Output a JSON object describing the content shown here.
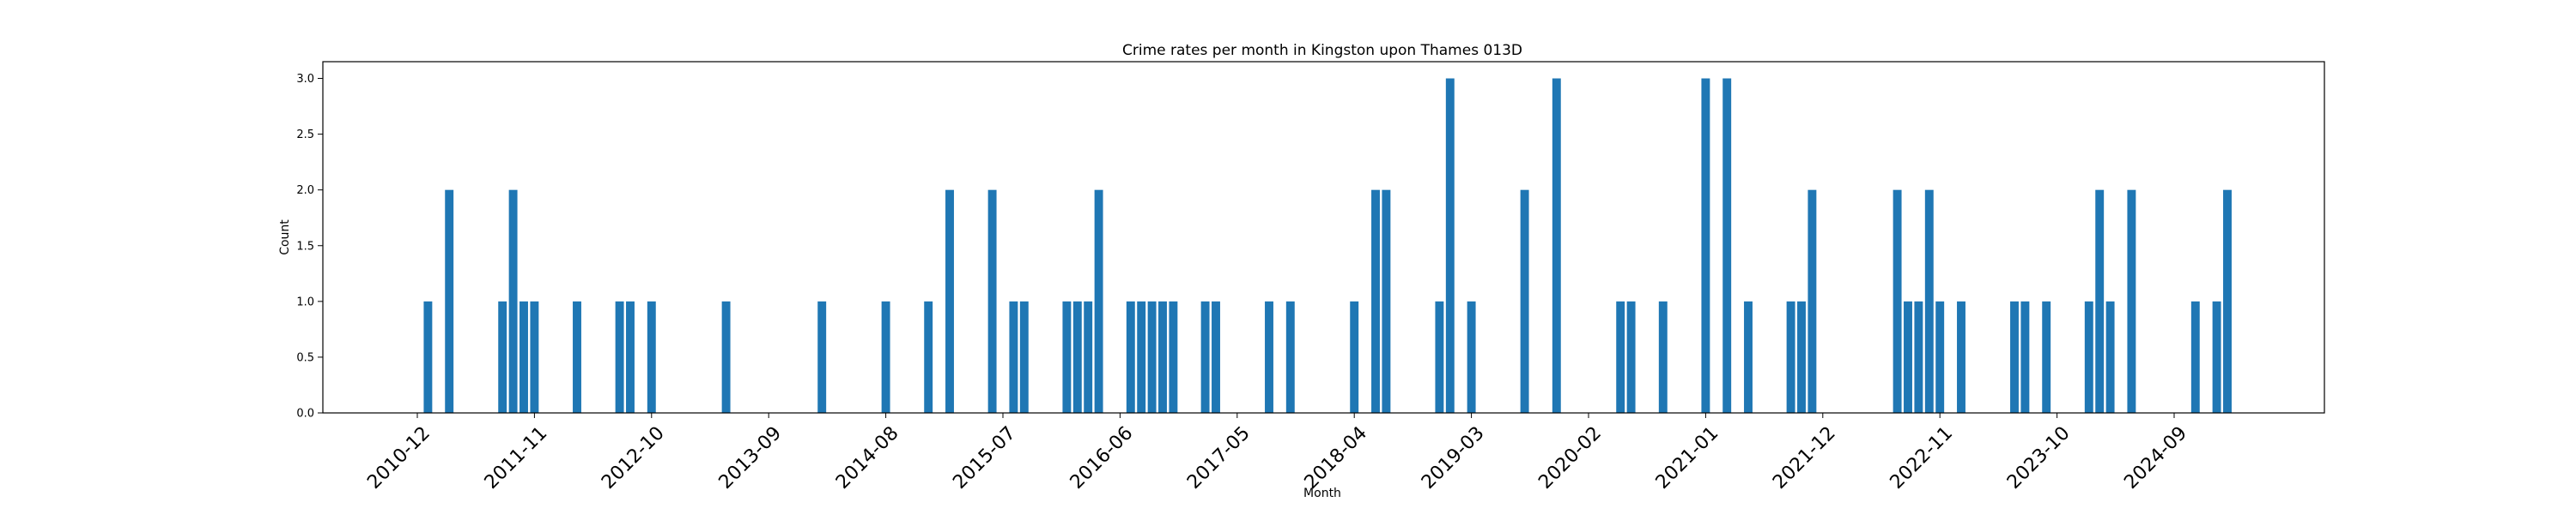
{
  "chart_data": {
    "type": "bar",
    "title": "Crime rates per month in Kingston upon Thames 013D",
    "xlabel": "Month",
    "ylabel": "Count",
    "ylim": [
      0,
      3.15
    ],
    "yticks": [
      "0.0",
      "0.5",
      "1.0",
      "1.5",
      "2.0",
      "2.5",
      "3.0"
    ],
    "xticks": [
      "2010-12",
      "2011-11",
      "2012-10",
      "2013-09",
      "2014-08",
      "2015-07",
      "2016-06",
      "2017-05",
      "2018-04",
      "2019-03",
      "2020-02",
      "2021-01",
      "2021-12",
      "2022-11",
      "2023-10",
      "2024-09"
    ],
    "grid": false,
    "color": "#1f77b4",
    "categories": [
      "2011-01",
      "2011-03",
      "2011-08",
      "2011-09",
      "2011-10",
      "2011-11",
      "2012-03",
      "2012-07",
      "2012-08",
      "2012-10",
      "2013-05",
      "2014-02",
      "2014-08",
      "2014-12",
      "2015-02",
      "2015-06",
      "2015-08",
      "2015-09",
      "2016-01",
      "2016-02",
      "2016-03",
      "2016-04",
      "2016-07",
      "2016-08",
      "2016-09",
      "2016-10",
      "2016-11",
      "2017-02",
      "2017-03",
      "2017-08",
      "2017-10",
      "2018-04",
      "2018-06",
      "2018-07",
      "2018-12",
      "2019-01",
      "2019-03",
      "2019-08",
      "2019-11",
      "2020-05",
      "2020-06",
      "2020-09",
      "2021-01",
      "2021-03",
      "2021-05",
      "2021-09",
      "2021-10",
      "2021-11",
      "2022-07",
      "2022-08",
      "2022-09",
      "2022-10",
      "2022-11",
      "2023-01",
      "2023-06",
      "2023-07",
      "2023-09",
      "2024-01",
      "2024-02",
      "2024-03",
      "2024-05",
      "2024-11",
      "2025-01",
      "2025-02"
    ],
    "values": [
      1,
      2,
      1,
      2,
      1,
      1,
      1,
      1,
      1,
      1,
      1,
      1,
      1,
      1,
      2,
      2,
      1,
      1,
      1,
      1,
      1,
      2,
      1,
      1,
      1,
      1,
      1,
      1,
      1,
      1,
      1,
      1,
      2,
      2,
      1,
      3,
      1,
      2,
      3,
      1,
      1,
      1,
      3,
      3,
      1,
      1,
      1,
      2,
      2,
      1,
      1,
      2,
      1,
      1,
      1,
      1,
      1,
      1,
      2,
      1,
      2,
      1,
      1,
      2
    ]
  }
}
